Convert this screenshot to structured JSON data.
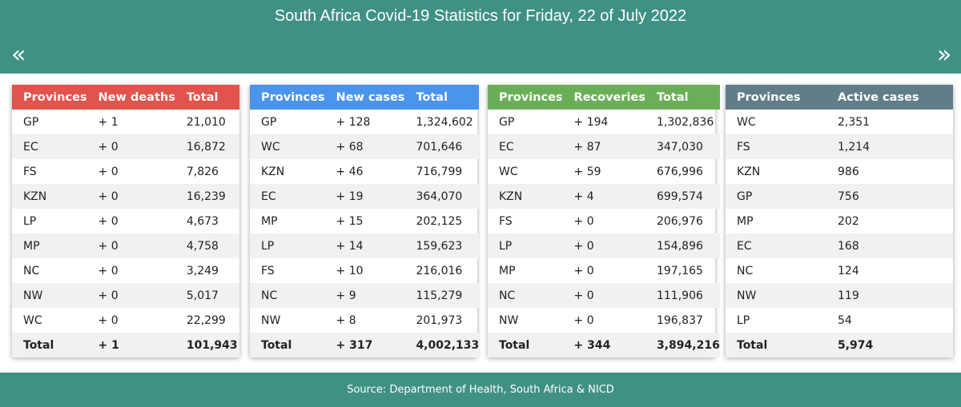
{
  "header": {
    "title": "South Africa Covid-19 Statistics for Friday, 22 of July 2022",
    "prev_icon": "«",
    "next_icon": "»"
  },
  "tables": [
    {
      "key": "deaths",
      "accent": "#e2534b",
      "headers": [
        "Provinces",
        "New deaths",
        "Total"
      ],
      "rows": [
        [
          "GP",
          "+ 1",
          "21,010"
        ],
        [
          "EC",
          "+ 0",
          "16,872"
        ],
        [
          "FS",
          "+ 0",
          "7,826"
        ],
        [
          "KZN",
          "+ 0",
          "16,239"
        ],
        [
          "LP",
          "+ 0",
          "4,673"
        ],
        [
          "MP",
          "+ 0",
          "4,758"
        ],
        [
          "NC",
          "+ 0",
          "3,249"
        ],
        [
          "NW",
          "+ 0",
          "5,017"
        ],
        [
          "WC",
          "+ 0",
          "22,299"
        ]
      ],
      "total": [
        "Total",
        "+ 1",
        "101,943"
      ]
    },
    {
      "key": "cases",
      "accent": "#4a94ec",
      "headers": [
        "Provinces",
        "New cases",
        "Total"
      ],
      "rows": [
        [
          "GP",
          "+ 128",
          "1,324,602"
        ],
        [
          "WC",
          "+ 68",
          "701,646"
        ],
        [
          "KZN",
          "+ 46",
          "716,799"
        ],
        [
          "EC",
          "+ 19",
          "364,070"
        ],
        [
          "MP",
          "+ 15",
          "202,125"
        ],
        [
          "LP",
          "+ 14",
          "159,623"
        ],
        [
          "FS",
          "+ 10",
          "216,016"
        ],
        [
          "NC",
          "+ 9",
          "115,279"
        ],
        [
          "NW",
          "+ 8",
          "201,973"
        ]
      ],
      "total": [
        "Total",
        "+ 317",
        "4,002,133"
      ]
    },
    {
      "key": "recoveries",
      "accent": "#6aaf57",
      "headers": [
        "Provinces",
        "Recoveries",
        "Total"
      ],
      "rows": [
        [
          "GP",
          "+ 194",
          "1,302,836"
        ],
        [
          "EC",
          "+ 87",
          "347,030"
        ],
        [
          "WC",
          "+ 59",
          "676,996"
        ],
        [
          "KZN",
          "+ 4",
          "699,574"
        ],
        [
          "FS",
          "+ 0",
          "206,976"
        ],
        [
          "LP",
          "+ 0",
          "154,896"
        ],
        [
          "MP",
          "+ 0",
          "197,165"
        ],
        [
          "NC",
          "+ 0",
          "111,906"
        ],
        [
          "NW",
          "+ 0",
          "196,837"
        ]
      ],
      "total": [
        "Total",
        "+ 344",
        "3,894,216"
      ]
    },
    {
      "key": "active",
      "accent": "#617d8a",
      "headers": [
        "Provinces",
        "Active cases"
      ],
      "rows": [
        [
          "WC",
          "2,351"
        ],
        [
          "FS",
          "1,214"
        ],
        [
          "KZN",
          "986"
        ],
        [
          "GP",
          "756"
        ],
        [
          "MP",
          "202"
        ],
        [
          "EC",
          "168"
        ],
        [
          "NC",
          "124"
        ],
        [
          "NW",
          "119"
        ],
        [
          "LP",
          "54"
        ]
      ],
      "total": [
        "Total",
        "5,974"
      ]
    }
  ],
  "footer": {
    "source": "Source: Department of Health, South Africa & NICD"
  }
}
